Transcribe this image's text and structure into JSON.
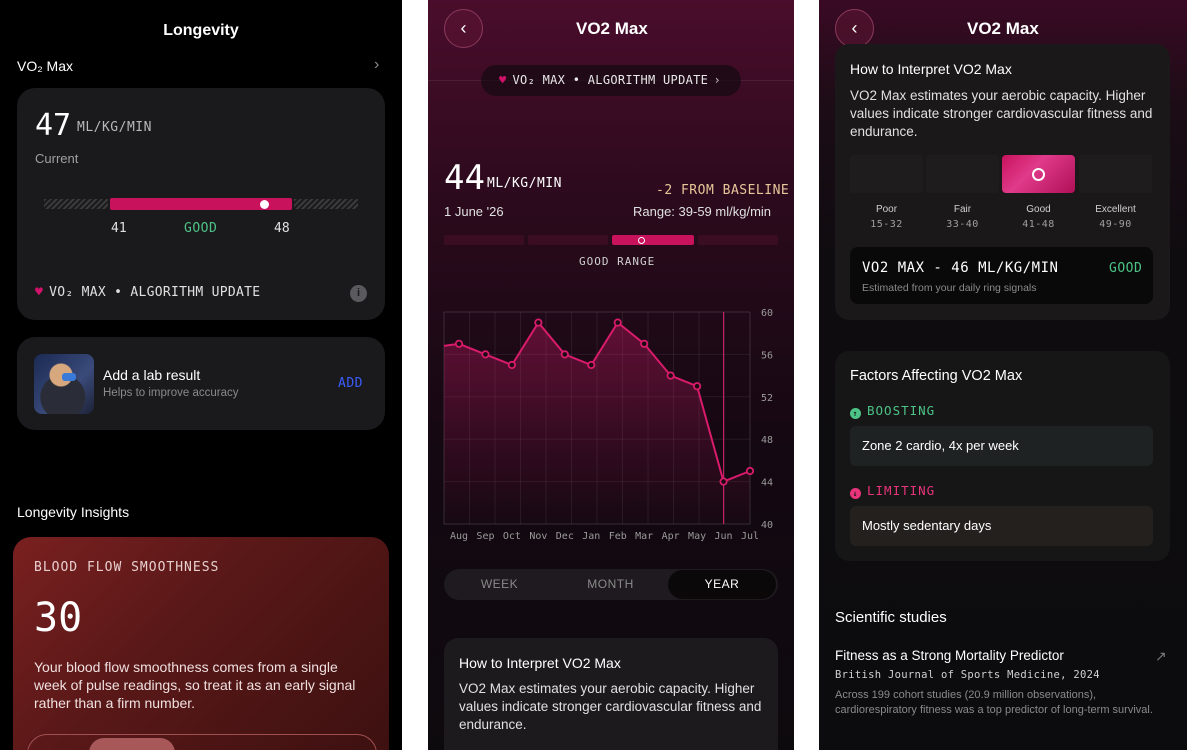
{
  "longevity": {
    "title": "Longevity",
    "vo2_section": "VO₂ Max",
    "current_value": "47",
    "unit": "ML/KG/MIN",
    "current_label": "Current",
    "range_low": "41",
    "range_high": "48",
    "range_status": "GOOD",
    "algo_update": "VO₂ MAX • ALGORITHM UPDATE",
    "lab_title": "Add a lab result",
    "lab_subtitle": "Helps to improve accuracy",
    "lab_action": "ADD",
    "insights_title": "Longevity Insights",
    "blood_flow_title": "BLOOD FLOW SMOOTHNESS",
    "blood_flow_value": "30",
    "blood_flow_text": "Your blood flow smoothness comes from a single week of pulse readings, so treat it as an early signal rather than a firm number."
  },
  "vo2_detail": {
    "title": "VO2 Max",
    "algo_pill": "VO₂ MAX • ALGORITHM UPDATE",
    "value": "44",
    "unit": "ML/KG/MIN",
    "baseline_delta": "-2 FROM BASELINE",
    "date": "1 June '26",
    "range": "Range: 39-59 ml/kg/min",
    "good_range_label": "GOOD RANGE",
    "period_options": [
      "WEEK",
      "MONTH",
      "YEAR"
    ],
    "selected_period": "YEAR",
    "interpret_title": "How to Interpret VO2 Max",
    "interpret_text": "VO2 Max estimates your aerobic capacity. Higher values indicate stronger cardiovascular fitness and endurance."
  },
  "chart_data": {
    "type": "line",
    "categories": [
      "Aug",
      "Sep",
      "Oct",
      "Nov",
      "Dec",
      "Jan",
      "Feb",
      "Mar",
      "Apr",
      "May",
      "Jun",
      "Jul"
    ],
    "x_positions": [
      0,
      1,
      2,
      3,
      4,
      5,
      6,
      7,
      8,
      9,
      10,
      11
    ],
    "values": [
      57,
      56,
      55,
      59,
      56,
      55,
      59,
      57,
      54,
      53,
      44,
      45
    ],
    "leading_value": 56.8,
    "yticks": [
      60,
      56,
      52,
      48,
      44,
      40
    ],
    "ylim": [
      40,
      60
    ],
    "marker_category": "Jun",
    "color": "#d81b6a"
  },
  "interpret": {
    "title": "How to Interpret VO2 Max",
    "text": "VO2 Max estimates your aerobic capacity. Higher values indicate stronger cardiovascular fitness and endurance.",
    "categories": [
      {
        "name": "Poor",
        "range": "15-32"
      },
      {
        "name": "Fair",
        "range": "33-40"
      },
      {
        "name": "Good",
        "range": "41-48"
      },
      {
        "name": "Excellent",
        "range": "49-90"
      }
    ],
    "current_title": "VO2 MAX - 46 ML/KG/MIN",
    "current_status": "GOOD",
    "current_sub": "Estimated from your daily ring signals"
  },
  "factors": {
    "title": "Factors Affecting VO2 Max",
    "boosting_label": "BOOSTING",
    "boosting_item": "Zone 2 cardio, 4x per week",
    "limiting_label": "LIMITING",
    "limiting_item": "Mostly sedentary days"
  },
  "studies": {
    "title": "Scientific studies",
    "item_title": "Fitness as a Strong Mortality Predictor",
    "item_journal": "British Journal of Sports Medicine, 2024",
    "item_text": "Across 199 cohort studies (20.9 million observations), cardiorespiratory fitness was a top predictor of long-term survival."
  }
}
